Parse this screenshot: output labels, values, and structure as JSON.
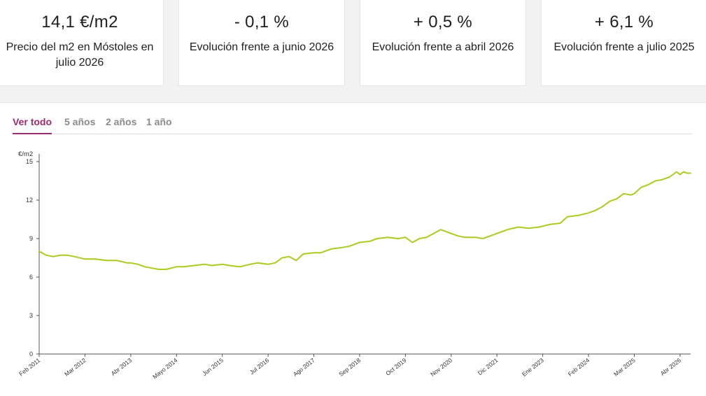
{
  "cards": [
    {
      "value": "14,1 €/m2",
      "label": "Precio del m2 en Móstoles en julio 2026"
    },
    {
      "value": "- 0,1 %",
      "label": "Evolución frente a junio 2026"
    },
    {
      "value": "+ 0,5 %",
      "label": "Evolución frente a abril 2026"
    },
    {
      "value": "+ 6,1 %",
      "label": "Evolución frente a julio 2025"
    }
  ],
  "tabs": [
    {
      "label": "Ver todo",
      "active": true
    },
    {
      "label": "5 años",
      "active": false
    },
    {
      "label": "2 años",
      "active": false
    },
    {
      "label": "1 año",
      "active": false
    }
  ],
  "colors": {
    "accent": "#9b2c74",
    "line": "#a9cc1f",
    "band": "#f2f2f2"
  },
  "chart_data": {
    "type": "line",
    "ylabel": "€/m2",
    "ylim": [
      0,
      15.6
    ],
    "yticks": [
      0,
      3,
      6,
      9,
      12,
      15
    ],
    "xlim": [
      "2011-02",
      "2026-07"
    ],
    "xticks": [
      {
        "date": "2011-02",
        "label": "Feb 2011"
      },
      {
        "date": "2012-03",
        "label": "Mar 2012"
      },
      {
        "date": "2013-04",
        "label": "Abr 2013"
      },
      {
        "date": "2014-05",
        "label": "Mayo 2014"
      },
      {
        "date": "2015-06",
        "label": "Jun 2015"
      },
      {
        "date": "2016-07",
        "label": "Jul 2016"
      },
      {
        "date": "2017-08",
        "label": "Ago 2017"
      },
      {
        "date": "2018-09",
        "label": "Sep 2018"
      },
      {
        "date": "2019-10",
        "label": "Oct 2019"
      },
      {
        "date": "2020-11",
        "label": "Nov 2020"
      },
      {
        "date": "2021-12",
        "label": "Dic 2021"
      },
      {
        "date": "2023-01",
        "label": "Ene 2023"
      },
      {
        "date": "2024-02",
        "label": "Feb 2024"
      },
      {
        "date": "2025-03",
        "label": "Mar 2025"
      },
      {
        "date": "2026-04",
        "label": "Abr 2026"
      }
    ],
    "grid": false,
    "series": [
      {
        "points": [
          [
            "2011-02",
            8.0
          ],
          [
            "2011-04",
            7.7
          ],
          [
            "2011-06",
            7.6
          ],
          [
            "2011-08",
            7.7
          ],
          [
            "2011-10",
            7.7
          ],
          [
            "2011-12",
            7.6
          ],
          [
            "2012-03",
            7.4
          ],
          [
            "2012-06",
            7.4
          ],
          [
            "2012-09",
            7.3
          ],
          [
            "2012-12",
            7.3
          ],
          [
            "2013-03",
            7.1
          ],
          [
            "2013-04",
            7.1
          ],
          [
            "2013-06",
            7.0
          ],
          [
            "2013-08",
            6.8
          ],
          [
            "2013-10",
            6.7
          ],
          [
            "2013-12",
            6.6
          ],
          [
            "2014-02",
            6.6
          ],
          [
            "2014-05",
            6.8
          ],
          [
            "2014-07",
            6.8
          ],
          [
            "2014-10",
            6.9
          ],
          [
            "2015-01",
            7.0
          ],
          [
            "2015-03",
            6.9
          ],
          [
            "2015-06",
            7.0
          ],
          [
            "2015-08",
            6.9
          ],
          [
            "2015-11",
            6.8
          ],
          [
            "2016-02",
            7.0
          ],
          [
            "2016-04",
            7.1
          ],
          [
            "2016-07",
            7.0
          ],
          [
            "2016-09",
            7.1
          ],
          [
            "2016-11",
            7.5
          ],
          [
            "2017-01",
            7.6
          ],
          [
            "2017-03",
            7.3
          ],
          [
            "2017-05",
            7.8
          ],
          [
            "2017-08",
            7.9
          ],
          [
            "2017-10",
            7.9
          ],
          [
            "2018-01",
            8.2
          ],
          [
            "2018-04",
            8.3
          ],
          [
            "2018-06",
            8.4
          ],
          [
            "2018-09",
            8.7
          ],
          [
            "2018-12",
            8.8
          ],
          [
            "2019-02",
            9.0
          ],
          [
            "2019-05",
            9.1
          ],
          [
            "2019-08",
            9.0
          ],
          [
            "2019-10",
            9.1
          ],
          [
            "2019-12",
            8.7
          ],
          [
            "2020-02",
            9.0
          ],
          [
            "2020-04",
            9.1
          ],
          [
            "2020-06",
            9.4
          ],
          [
            "2020-08",
            9.7
          ],
          [
            "2020-11",
            9.4
          ],
          [
            "2021-01",
            9.2
          ],
          [
            "2021-03",
            9.1
          ],
          [
            "2021-06",
            9.1
          ],
          [
            "2021-08",
            9.0
          ],
          [
            "2021-12",
            9.4
          ],
          [
            "2022-03",
            9.7
          ],
          [
            "2022-06",
            9.9
          ],
          [
            "2022-09",
            9.8
          ],
          [
            "2022-12",
            9.9
          ],
          [
            "2023-03",
            10.1
          ],
          [
            "2023-06",
            10.2
          ],
          [
            "2023-08",
            10.7
          ],
          [
            "2023-11",
            10.8
          ],
          [
            "2024-02",
            11.0
          ],
          [
            "2024-04",
            11.2
          ],
          [
            "2024-06",
            11.5
          ],
          [
            "2024-08",
            11.9
          ],
          [
            "2024-10",
            12.1
          ],
          [
            "2024-12",
            12.5
          ],
          [
            "2025-02",
            12.4
          ],
          [
            "2025-03",
            12.5
          ],
          [
            "2025-05",
            13.0
          ],
          [
            "2025-07",
            13.2
          ],
          [
            "2025-09",
            13.5
          ],
          [
            "2025-11",
            13.6
          ],
          [
            "2026-01",
            13.8
          ],
          [
            "2026-03",
            14.2
          ],
          [
            "2026-04",
            14.0
          ],
          [
            "2026-05",
            14.2
          ],
          [
            "2026-06",
            14.1
          ],
          [
            "2026-07",
            14.1
          ]
        ]
      }
    ]
  }
}
